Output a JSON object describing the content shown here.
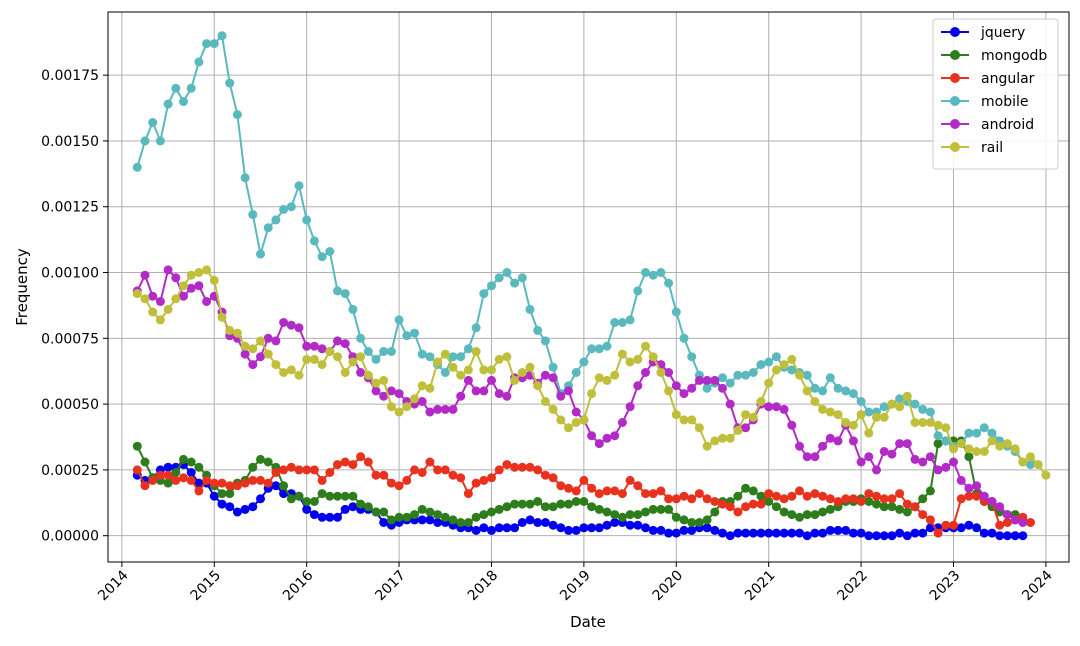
{
  "chart_data": {
    "type": "line",
    "title": "",
    "xlabel": "Date",
    "ylabel": "Frequency",
    "x_ticks": [
      "2014",
      "2015",
      "2016",
      "2017",
      "2018",
      "2019",
      "2020",
      "2021",
      "2022",
      "2023",
      "2024"
    ],
    "y_ticks": [
      "0.00000",
      "0.00025",
      "0.00050",
      "0.00075",
      "0.00100",
      "0.00125",
      "0.00150",
      "0.00175"
    ],
    "xlim": [
      2013.85,
      2024.25
    ],
    "ylim": [
      -0.0001,
      0.00199
    ],
    "grid": true,
    "legend_position": "top-right",
    "x_start": "2014-03",
    "x_step": "1 month",
    "series": [
      {
        "name": "jquery",
        "color": "#0000ee",
        "values": [
          0.00023,
          0.00021,
          0.00022,
          0.00025,
          0.00026,
          0.00026,
          0.00027,
          0.00024,
          0.0002,
          0.0002,
          0.00015,
          0.00012,
          0.00011,
          9e-05,
          0.0001,
          0.00011,
          0.00014,
          0.00018,
          0.00019,
          0.00016,
          0.00016,
          0.00015,
          0.0001,
          8e-05,
          7e-05,
          7e-05,
          7e-05,
          0.0001,
          0.00011,
          0.0001,
          0.0001,
          9e-05,
          5e-05,
          4e-05,
          5e-05,
          6e-05,
          6e-05,
          6e-05,
          6e-05,
          5e-05,
          5e-05,
          4e-05,
          3e-05,
          3e-05,
          2e-05,
          3e-05,
          2e-05,
          3e-05,
          3e-05,
          3e-05,
          5e-05,
          6e-05,
          5e-05,
          5e-05,
          4e-05,
          3e-05,
          2e-05,
          2e-05,
          3e-05,
          3e-05,
          3e-05,
          4e-05,
          5e-05,
          5e-05,
          4e-05,
          4e-05,
          3e-05,
          2e-05,
          2e-05,
          1e-05,
          1e-05,
          2e-05,
          2e-05,
          3e-05,
          3e-05,
          2e-05,
          1e-05,
          0,
          1e-05,
          1e-05,
          1e-05,
          1e-05,
          1e-05,
          1e-05,
          1e-05,
          1e-05,
          1e-05,
          0,
          1e-05,
          1e-05,
          2e-05,
          2e-05,
          2e-05,
          1e-05,
          1e-05,
          0,
          0,
          0,
          0,
          1e-05,
          0,
          1e-05,
          1e-05,
          3e-05,
          3e-05,
          3e-05,
          3e-05,
          3e-05,
          4e-05,
          3e-05,
          1e-05,
          1e-05,
          0,
          0,
          0,
          0
        ]
      },
      {
        "name": "mongodb",
        "color": "#2e7d1c",
        "values": [
          0.00034,
          0.00028,
          0.00022,
          0.00021,
          0.0002,
          0.00024,
          0.00029,
          0.00028,
          0.00026,
          0.00023,
          0.00019,
          0.00016,
          0.00016,
          0.0002,
          0.00021,
          0.00026,
          0.00029,
          0.00028,
          0.00026,
          0.00019,
          0.00014,
          0.00015,
          0.00013,
          0.00013,
          0.00016,
          0.00015,
          0.00015,
          0.00015,
          0.00015,
          0.00012,
          0.00011,
          9e-05,
          9e-05,
          6e-05,
          7e-05,
          7e-05,
          8e-05,
          0.0001,
          9e-05,
          8e-05,
          7e-05,
          6e-05,
          5e-05,
          5e-05,
          7e-05,
          8e-05,
          9e-05,
          0.0001,
          0.00011,
          0.00012,
          0.00012,
          0.00012,
          0.00013,
          0.00011,
          0.00011,
          0.00012,
          0.00012,
          0.00013,
          0.00013,
          0.00011,
          0.0001,
          9e-05,
          8e-05,
          7e-05,
          8e-05,
          8e-05,
          9e-05,
          0.0001,
          0.0001,
          0.0001,
          7e-05,
          6e-05,
          5e-05,
          5e-05,
          6e-05,
          9e-05,
          0.00013,
          0.00013,
          0.00015,
          0.00018,
          0.00017,
          0.00015,
          0.00013,
          0.00011,
          9e-05,
          8e-05,
          7e-05,
          8e-05,
          8e-05,
          9e-05,
          0.0001,
          0.00011,
          0.00013,
          0.00013,
          0.00014,
          0.00013,
          0.00012,
          0.00011,
          0.00011,
          0.0001,
          9e-05,
          0.00011,
          0.00014,
          0.00017,
          0.00035,
          0.00036,
          0.00036,
          0.00036,
          0.0003,
          0.00016,
          0.00013,
          0.00011,
          9e-05,
          8e-05,
          8e-05
        ]
      },
      {
        "name": "angular",
        "color": "#e8321e",
        "values": [
          0.00025,
          0.00019,
          0.00021,
          0.00023,
          0.00023,
          0.00021,
          0.00022,
          0.00021,
          0.00017,
          0.00021,
          0.0002,
          0.0002,
          0.00019,
          0.00019,
          0.0002,
          0.00021,
          0.00021,
          0.0002,
          0.00024,
          0.00025,
          0.00026,
          0.00025,
          0.00025,
          0.00025,
          0.00021,
          0.00024,
          0.00027,
          0.00028,
          0.00027,
          0.0003,
          0.00028,
          0.00023,
          0.00023,
          0.0002,
          0.00019,
          0.00021,
          0.00025,
          0.00024,
          0.00028,
          0.00025,
          0.00025,
          0.00023,
          0.00022,
          0.00016,
          0.0002,
          0.00021,
          0.00022,
          0.00025,
          0.00027,
          0.00026,
          0.00026,
          0.00026,
          0.00025,
          0.00023,
          0.00022,
          0.00019,
          0.00018,
          0.00017,
          0.00021,
          0.00018,
          0.00016,
          0.00017,
          0.00017,
          0.00016,
          0.00021,
          0.00019,
          0.00016,
          0.00016,
          0.00017,
          0.00014,
          0.00014,
          0.00015,
          0.00014,
          0.00016,
          0.00014,
          0.00013,
          0.00012,
          0.00011,
          9e-05,
          0.00011,
          0.00012,
          0.00012,
          0.00016,
          0.00015,
          0.00014,
          0.00015,
          0.00017,
          0.00015,
          0.00016,
          0.00015,
          0.00014,
          0.00013,
          0.00014,
          0.00014,
          0.00013,
          0.00016,
          0.00015,
          0.00014,
          0.00014,
          0.00016,
          0.00012,
          0.00011,
          8e-05,
          6e-05,
          1e-05,
          4e-05,
          4e-05,
          0.00014,
          0.00015,
          0.00015,
          0.00013,
          0.00013,
          4e-05,
          5e-05,
          6e-05,
          7e-05,
          5e-05
        ]
      },
      {
        "name": "mobile",
        "color": "#5ab9bd",
        "values": [
          0.0014,
          0.0015,
          0.00157,
          0.0015,
          0.00164,
          0.0017,
          0.00165,
          0.0017,
          0.0018,
          0.00187,
          0.00187,
          0.0019,
          0.00172,
          0.0016,
          0.00136,
          0.00122,
          0.00107,
          0.00117,
          0.0012,
          0.00124,
          0.00125,
          0.00133,
          0.0012,
          0.00112,
          0.00106,
          0.00108,
          0.00093,
          0.00092,
          0.00086,
          0.00075,
          0.0007,
          0.00067,
          0.0007,
          0.0007,
          0.00082,
          0.00076,
          0.00077,
          0.00069,
          0.00068,
          0.00065,
          0.00062,
          0.00068,
          0.00068,
          0.00071,
          0.00079,
          0.00092,
          0.00095,
          0.00098,
          0.001,
          0.00096,
          0.00098,
          0.00086,
          0.00078,
          0.00074,
          0.00064,
          0.00054,
          0.00057,
          0.00062,
          0.00066,
          0.00071,
          0.00071,
          0.00072,
          0.00081,
          0.00081,
          0.00082,
          0.00093,
          0.001,
          0.00099,
          0.001,
          0.00096,
          0.00085,
          0.00075,
          0.00068,
          0.00061,
          0.00056,
          0.00058,
          0.0006,
          0.00058,
          0.00061,
          0.00061,
          0.00062,
          0.00065,
          0.00066,
          0.00068,
          0.00064,
          0.00063,
          0.00062,
          0.00061,
          0.00056,
          0.00055,
          0.0006,
          0.00056,
          0.00055,
          0.00054,
          0.00051,
          0.00047,
          0.00047,
          0.00049,
          0.0005,
          0.00052,
          0.00051,
          0.0005,
          0.00048,
          0.00047,
          0.00038,
          0.00036,
          0.00034,
          0.00035,
          0.00039,
          0.00039,
          0.00041,
          0.00039,
          0.00036,
          0.00034,
          0.00032,
          0.00028,
          0.00027
        ]
      },
      {
        "name": "android",
        "color": "#b22bc6",
        "values": [
          0.00093,
          0.00099,
          0.00091,
          0.00089,
          0.00101,
          0.00098,
          0.00091,
          0.00094,
          0.00095,
          0.00089,
          0.00091,
          0.00085,
          0.00076,
          0.00075,
          0.00069,
          0.00065,
          0.00068,
          0.00075,
          0.00074,
          0.00081,
          0.0008,
          0.00079,
          0.00072,
          0.00072,
          0.00071,
          0.0007,
          0.00074,
          0.00073,
          0.00068,
          0.00062,
          0.0006,
          0.00055,
          0.00053,
          0.00055,
          0.00054,
          0.00051,
          0.0005,
          0.00051,
          0.00047,
          0.00048,
          0.00048,
          0.00048,
          0.00053,
          0.00059,
          0.00055,
          0.00055,
          0.00059,
          0.00054,
          0.00053,
          0.0006,
          0.0006,
          0.00061,
          0.00058,
          0.00061,
          0.0006,
          0.00053,
          0.00055,
          0.00047,
          0.00044,
          0.00038,
          0.00035,
          0.00037,
          0.00038,
          0.00043,
          0.00049,
          0.00057,
          0.00062,
          0.00066,
          0.00065,
          0.00062,
          0.00057,
          0.00054,
          0.00056,
          0.00059,
          0.00059,
          0.00059,
          0.00056,
          0.0005,
          0.00041,
          0.00041,
          0.00044,
          0.0005,
          0.00049,
          0.00049,
          0.00048,
          0.00042,
          0.00034,
          0.0003,
          0.0003,
          0.00034,
          0.00037,
          0.00036,
          0.00042,
          0.00036,
          0.00028,
          0.0003,
          0.00025,
          0.00032,
          0.00031,
          0.00035,
          0.00035,
          0.00029,
          0.00028,
          0.0003,
          0.00025,
          0.00026,
          0.00028,
          0.00021,
          0.00018,
          0.00019,
          0.00015,
          0.00013,
          0.00011,
          8e-05,
          6e-05,
          5e-05
        ]
      },
      {
        "name": "rail",
        "color": "#bfbf3c",
        "values": [
          0.00092,
          0.0009,
          0.00085,
          0.00082,
          0.00086,
          0.0009,
          0.00095,
          0.00099,
          0.001,
          0.00101,
          0.00097,
          0.00083,
          0.00078,
          0.00077,
          0.00072,
          0.00071,
          0.00074,
          0.00069,
          0.00065,
          0.00062,
          0.00063,
          0.00061,
          0.00067,
          0.00067,
          0.00065,
          0.0007,
          0.00068,
          0.00062,
          0.00066,
          0.00068,
          0.00061,
          0.00058,
          0.00059,
          0.00049,
          0.00047,
          0.00049,
          0.00052,
          0.00057,
          0.00056,
          0.00066,
          0.00069,
          0.00064,
          0.00061,
          0.00063,
          0.0007,
          0.00063,
          0.00063,
          0.00067,
          0.00068,
          0.00059,
          0.00062,
          0.00064,
          0.00057,
          0.00051,
          0.00048,
          0.00044,
          0.00041,
          0.00043,
          0.00044,
          0.00054,
          0.0006,
          0.00059,
          0.00061,
          0.00069,
          0.00066,
          0.00067,
          0.00072,
          0.00068,
          0.00062,
          0.00055,
          0.00046,
          0.00044,
          0.00044,
          0.00041,
          0.00034,
          0.00036,
          0.00037,
          0.00037,
          0.0004,
          0.00046,
          0.00045,
          0.00051,
          0.00058,
          0.00063,
          0.00065,
          0.00067,
          0.00061,
          0.00055,
          0.00051,
          0.00048,
          0.00047,
          0.00046,
          0.00043,
          0.00042,
          0.00046,
          0.00039,
          0.00045,
          0.00045,
          0.0005,
          0.00049,
          0.00053,
          0.00043,
          0.00043,
          0.00043,
          0.00042,
          0.00041,
          0.00033,
          0.00035,
          0.00033,
          0.00032,
          0.00032,
          0.00036,
          0.00034,
          0.00035,
          0.00033,
          0.00028,
          0.0003,
          0.00027,
          0.00023
        ]
      }
    ]
  }
}
